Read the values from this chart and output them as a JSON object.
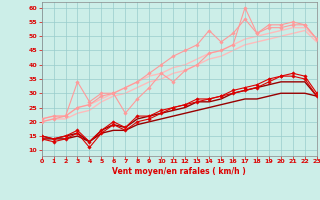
{
  "xlabel": "Vent moyen/en rafales ( km/h )",
  "xlim": [
    0,
    23
  ],
  "ylim": [
    8,
    62
  ],
  "yticks": [
    10,
    15,
    20,
    25,
    30,
    35,
    40,
    45,
    50,
    55,
    60
  ],
  "xticks": [
    0,
    1,
    2,
    3,
    4,
    5,
    6,
    7,
    8,
    9,
    10,
    11,
    12,
    13,
    14,
    15,
    16,
    17,
    18,
    19,
    20,
    21,
    22,
    23
  ],
  "background_color": "#cceee8",
  "grid_color": "#99cccc",
  "series": [
    {
      "x": [
        0,
        1,
        2,
        3,
        4,
        5,
        6,
        7,
        8,
        9,
        10,
        11,
        12,
        13,
        14,
        15,
        16,
        17,
        18,
        19,
        20,
        21,
        22,
        23
      ],
      "y": [
        21,
        22,
        22,
        34,
        27,
        30,
        30,
        23,
        28,
        32,
        37,
        34,
        38,
        40,
        44,
        45,
        47,
        60,
        51,
        54,
        54,
        55,
        54,
        49
      ],
      "color": "#ff9999",
      "linewidth": 0.8,
      "marker": "D",
      "markersize": 1.8,
      "zorder": 3
    },
    {
      "x": [
        0,
        1,
        2,
        3,
        4,
        5,
        6,
        7,
        8,
        9,
        10,
        11,
        12,
        13,
        14,
        15,
        16,
        17,
        18,
        19,
        20,
        21,
        22,
        23
      ],
      "y": [
        20,
        21,
        22,
        25,
        26,
        29,
        30,
        32,
        34,
        37,
        40,
        43,
        45,
        47,
        52,
        48,
        51,
        56,
        51,
        53,
        53,
        54,
        54,
        49
      ],
      "color": "#ff9999",
      "linewidth": 0.8,
      "marker": "D",
      "markersize": 1.8,
      "zorder": 3
    },
    {
      "x": [
        0,
        1,
        2,
        3,
        4,
        5,
        6,
        7,
        8,
        9,
        10,
        11,
        12,
        13,
        14,
        15,
        16,
        17,
        18,
        19,
        20,
        21,
        22,
        23
      ],
      "y": [
        20,
        21,
        21,
        23,
        24,
        27,
        29,
        30,
        32,
        34,
        35,
        37,
        38,
        40,
        42,
        43,
        45,
        47,
        48,
        49,
        50,
        51,
        52,
        48
      ],
      "color": "#ffbbbb",
      "linewidth": 1.0,
      "marker": null,
      "markersize": 0,
      "zorder": 1
    },
    {
      "x": [
        0,
        1,
        2,
        3,
        4,
        5,
        6,
        7,
        8,
        9,
        10,
        11,
        12,
        13,
        14,
        15,
        16,
        17,
        18,
        19,
        20,
        21,
        22,
        23
      ],
      "y": [
        21,
        22,
        22,
        25,
        26,
        28,
        30,
        32,
        34,
        36,
        37,
        39,
        40,
        42,
        44,
        45,
        47,
        49,
        50,
        51,
        52,
        53,
        53,
        49
      ],
      "color": "#ffbbbb",
      "linewidth": 1.0,
      "marker": null,
      "markersize": 0,
      "zorder": 1
    },
    {
      "x": [
        0,
        1,
        2,
        3,
        4,
        5,
        6,
        7,
        8,
        9,
        10,
        11,
        12,
        13,
        14,
        15,
        16,
        17,
        18,
        19,
        20,
        21,
        22,
        23
      ],
      "y": [
        14,
        13,
        14,
        16,
        11,
        16,
        19,
        17,
        20,
        21,
        23,
        25,
        26,
        27,
        28,
        29,
        30,
        31,
        32,
        34,
        36,
        37,
        36,
        30
      ],
      "color": "#dd0000",
      "linewidth": 0.8,
      "marker": "D",
      "markersize": 1.8,
      "zorder": 5
    },
    {
      "x": [
        0,
        1,
        2,
        3,
        4,
        5,
        6,
        7,
        8,
        9,
        10,
        11,
        12,
        13,
        14,
        15,
        16,
        17,
        18,
        19,
        20,
        21,
        22,
        23
      ],
      "y": [
        15,
        14,
        15,
        17,
        13,
        17,
        20,
        18,
        22,
        22,
        24,
        25,
        26,
        28,
        28,
        29,
        31,
        32,
        33,
        35,
        36,
        36,
        35,
        29
      ],
      "color": "#dd0000",
      "linewidth": 0.8,
      "marker": "D",
      "markersize": 1.8,
      "zorder": 5
    },
    {
      "x": [
        0,
        1,
        2,
        3,
        4,
        5,
        6,
        7,
        8,
        9,
        10,
        11,
        12,
        13,
        14,
        15,
        16,
        17,
        18,
        19,
        20,
        21,
        22,
        23
      ],
      "y": [
        14,
        14,
        14,
        15,
        13,
        16,
        17,
        17,
        19,
        20,
        21,
        22,
        23,
        24,
        25,
        26,
        27,
        28,
        28,
        29,
        30,
        30,
        30,
        29
      ],
      "color": "#990000",
      "linewidth": 1.0,
      "marker": null,
      "markersize": 0,
      "zorder": 2
    },
    {
      "x": [
        0,
        1,
        2,
        3,
        4,
        5,
        6,
        7,
        8,
        9,
        10,
        11,
        12,
        13,
        14,
        15,
        16,
        17,
        18,
        19,
        20,
        21,
        22,
        23
      ],
      "y": [
        15,
        14,
        15,
        16,
        13,
        17,
        19,
        18,
        21,
        22,
        23,
        24,
        25,
        27,
        27,
        28,
        30,
        31,
        32,
        33,
        34,
        34,
        34,
        29
      ],
      "color": "#990000",
      "linewidth": 1.0,
      "marker": null,
      "markersize": 0,
      "zorder": 2
    }
  ]
}
